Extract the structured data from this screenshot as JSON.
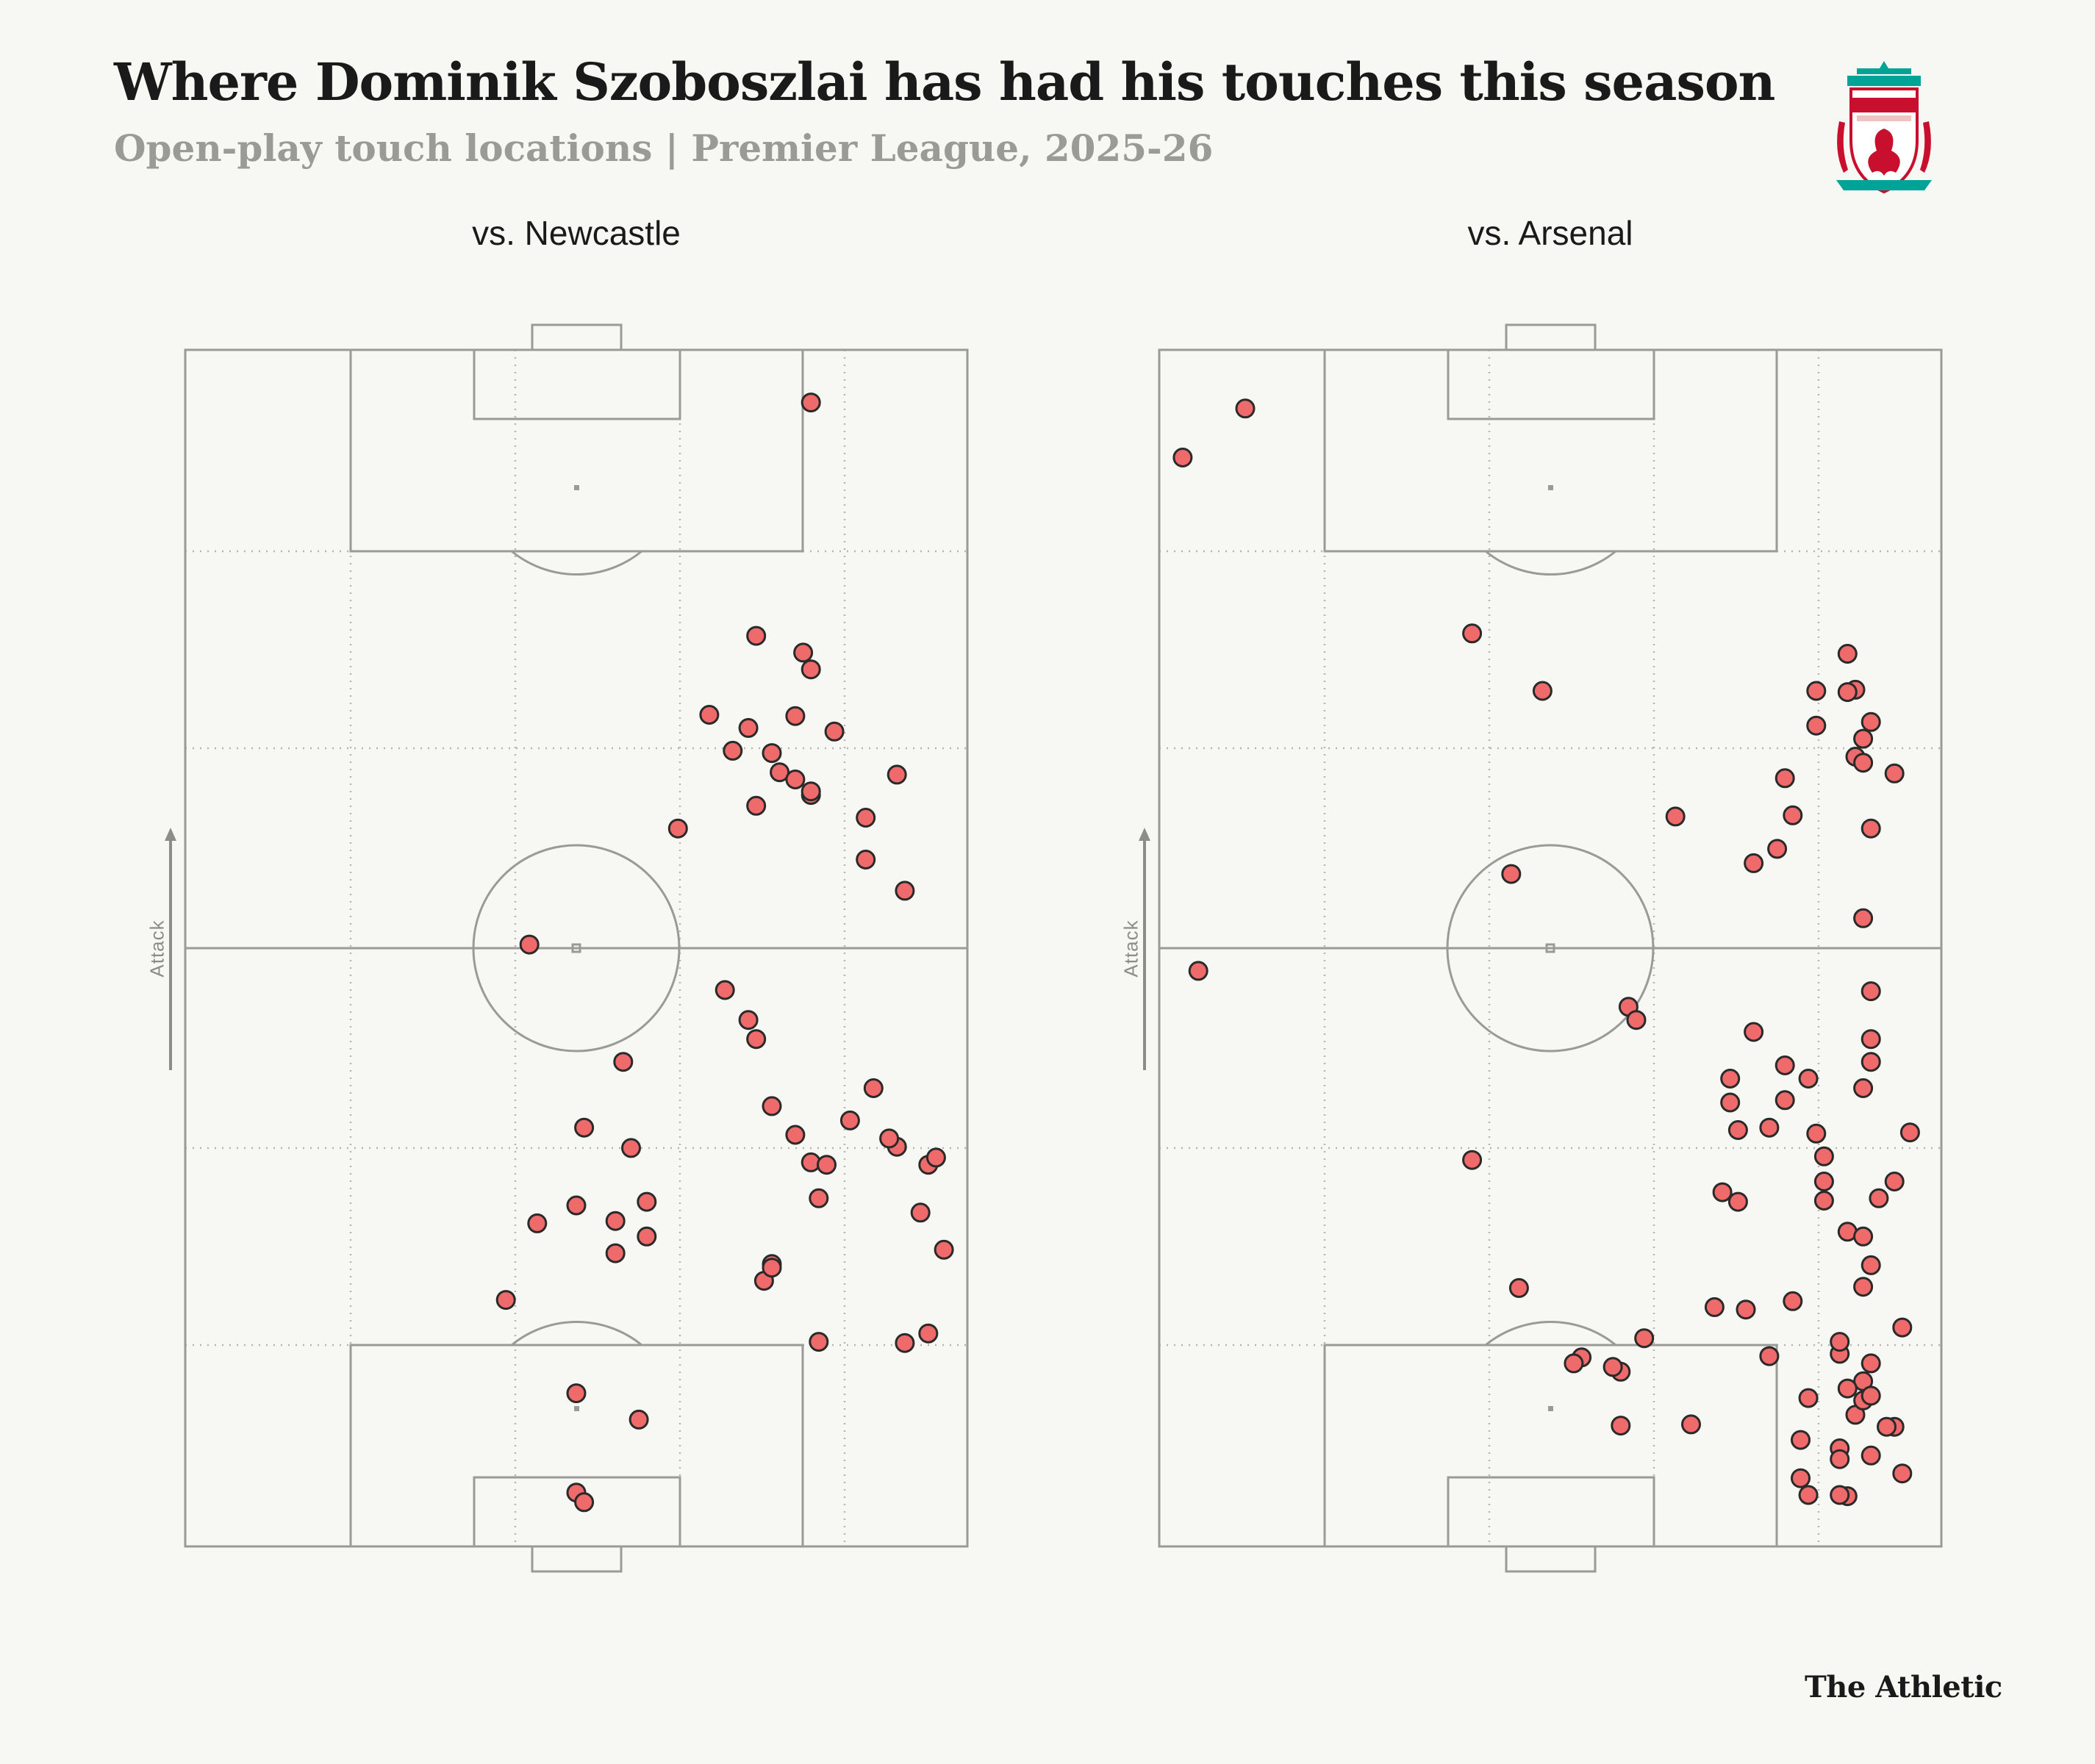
{
  "title": "Where Dominik Szoboszlai has had his touches this season",
  "subtitle": "Open-play touch locations | Premier League, 2025-26",
  "brand": "The Athletic",
  "attack_label": "Attack",
  "crest": {
    "club": "LIVERPOOL",
    "sub": "FOOTBALL CLUB",
    "motto": "YOU'LL NEVER WALK ALONE",
    "est": "EST 1892"
  },
  "colors": {
    "dot": "#ef6a6a",
    "line": "#9a9a96",
    "background": "#f7f7f3",
    "crest_red": "#c8102e",
    "crest_green": "#00a398"
  },
  "chart_data": [
    {
      "type": "scatter",
      "title": "vs. Newcastle",
      "xlim": [
        0,
        100
      ],
      "ylim": [
        0,
        100
      ],
      "attack_direction": "up",
      "x": [
        80,
        73,
        79,
        80,
        67,
        72,
        70,
        83,
        75,
        78,
        76,
        80,
        78,
        91,
        87,
        80,
        73,
        63,
        87,
        92,
        44,
        69,
        72,
        73,
        56,
        88,
        91,
        95,
        51,
        57,
        85,
        90,
        80,
        81,
        78,
        75,
        82,
        59,
        50,
        55,
        45,
        59,
        41,
        74,
        94,
        95,
        75,
        97,
        92,
        75,
        55,
        81,
        96,
        50,
        58,
        50,
        51
      ],
      "y": [
        95.6,
        76.1,
        74.7,
        73.3,
        69.5,
        68.4,
        66.5,
        68.1,
        66.3,
        69.4,
        64.7,
        62.8,
        64.1,
        64.5,
        60.9,
        63.1,
        61.9,
        60.0,
        57.4,
        54.8,
        50.3,
        46.5,
        44.0,
        42.4,
        40.5,
        38.3,
        33.4,
        31.9,
        35.0,
        33.3,
        35.6,
        34.1,
        32.1,
        29.1,
        34.4,
        36.8,
        31.9,
        28.8,
        28.5,
        27.2,
        27.0,
        25.9,
        20.6,
        22.2,
        27.9,
        17.8,
        23.6,
        24.8,
        17.0,
        23.3,
        24.5,
        17.1,
        32.5,
        12.8,
        10.6,
        4.5,
        3.7
      ]
    },
    {
      "type": "scatter",
      "title": "vs. Arsenal",
      "xlim": [
        0,
        100
      ],
      "ylim": [
        0,
        100
      ],
      "attack_direction": "up",
      "x": [
        11,
        3,
        40,
        49,
        88,
        84,
        89,
        88,
        84,
        91,
        89,
        90,
        90,
        80,
        94,
        81,
        66,
        79,
        91,
        90,
        76,
        45,
        5,
        60,
        61,
        91,
        83,
        73,
        91,
        78,
        74,
        85,
        80,
        85,
        73,
        76,
        91,
        80,
        90,
        84,
        96,
        104,
        94,
        40,
        88,
        74,
        72,
        92,
        90,
        85,
        71,
        46,
        54,
        53,
        89,
        81,
        90,
        62,
        59,
        58,
        78,
        75,
        87,
        95,
        90,
        88,
        90,
        87,
        91,
        91,
        87,
        82,
        82,
        88,
        87,
        59,
        68,
        94,
        91,
        83,
        93,
        87,
        83,
        95,
        91
      ],
      "y": [
        95.1,
        91.0,
        76.3,
        71.5,
        74.6,
        71.5,
        71.6,
        71.4,
        68.6,
        68.9,
        66.0,
        67.5,
        65.5,
        64.2,
        64.6,
        61.1,
        61.0,
        58.3,
        60.0,
        52.5,
        57.1,
        56.2,
        48.1,
        45.1,
        44.0,
        46.4,
        39.1,
        39.1,
        42.4,
        35.0,
        34.8,
        30.5,
        37.3,
        32.6,
        37.1,
        43.0,
        40.5,
        40.2,
        38.3,
        34.5,
        34.6,
        31.4,
        30.5,
        32.3,
        26.3,
        28.8,
        29.6,
        29.1,
        25.9,
        28.9,
        20.0,
        21.6,
        15.8,
        15.3,
        11.0,
        20.5,
        21.7,
        17.4,
        14.6,
        15.0,
        15.9,
        19.8,
        16.1,
        18.3,
        13.8,
        13.2,
        12.2,
        17.1,
        15.3,
        23.5,
        8.2,
        8.9,
        5.7,
        4.2,
        4.3,
        10.1,
        10.2,
        10.0,
        12.6,
        12.4,
        10.0,
        7.3,
        4.3,
        6.1,
        7.6
      ]
    }
  ]
}
